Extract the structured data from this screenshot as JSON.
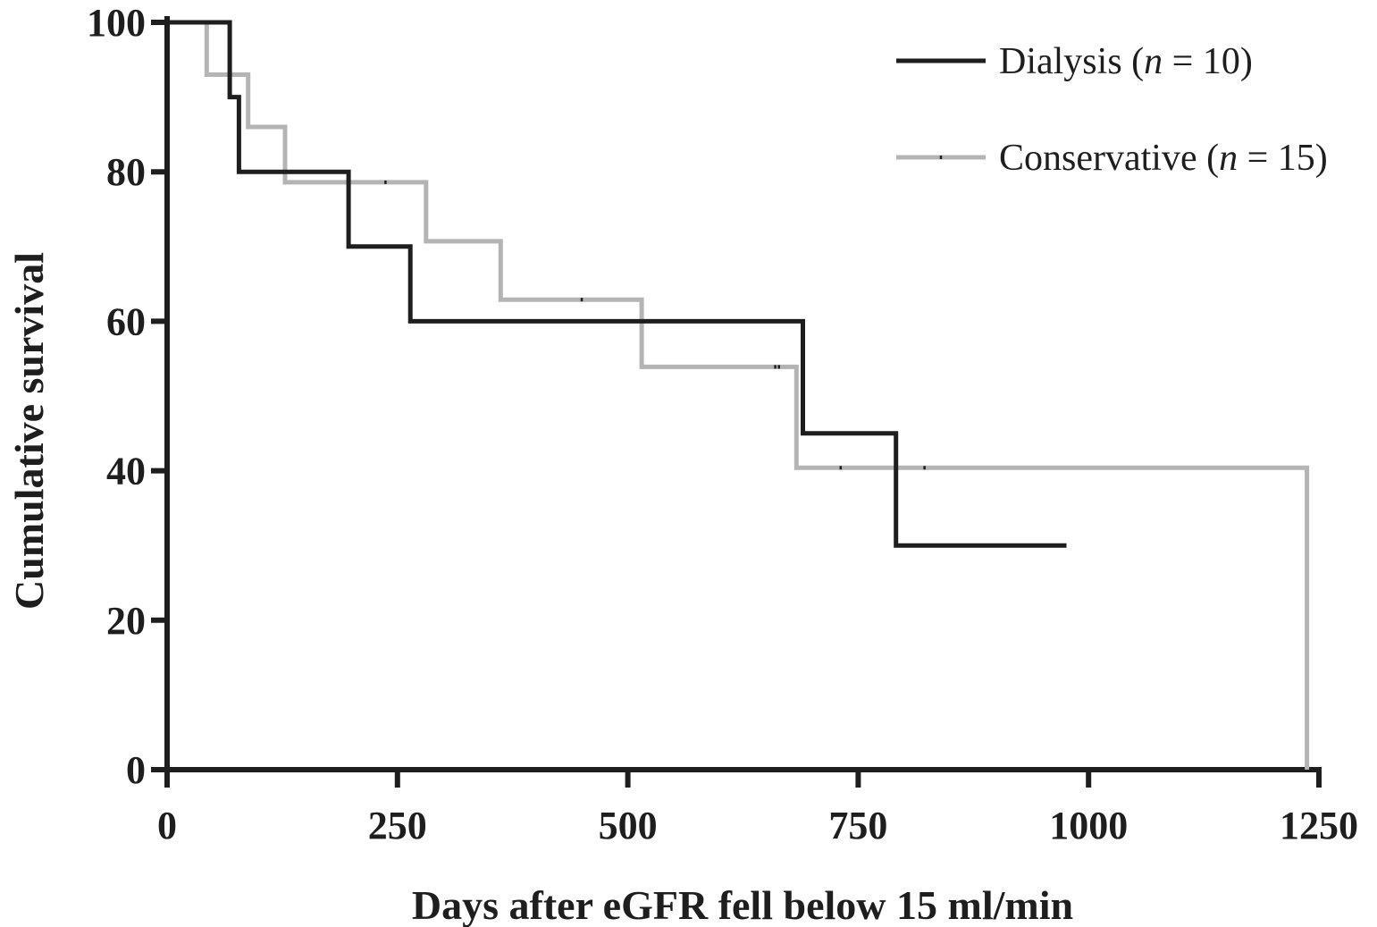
{
  "chart_data": {
    "type": "line",
    "title": "",
    "xlabel": "Days after eGFR fell below 15 ml/min",
    "ylabel": "Cumulative survival",
    "xlim": [
      0,
      1250
    ],
    "ylim": [
      0,
      100
    ],
    "x_ticks": [
      0,
      250,
      500,
      750,
      1000,
      1250
    ],
    "x_tick_labels": [
      "0",
      "250",
      "500",
      "750",
      "1000",
      "1250"
    ],
    "y_ticks": [
      0,
      20,
      40,
      60,
      80,
      100
    ],
    "y_tick_labels": [
      "0",
      "20",
      "40",
      "60",
      "80",
      "100"
    ],
    "grid": false,
    "legend_position": "top-right",
    "series": [
      {
        "name": "Dialysis (n = 10)",
        "name_prefix": "Dialysis (",
        "name_italic": "n",
        "name_suffix": " = 10)",
        "color": "#1e1e1e",
        "step": true,
        "points": [
          [
            0,
            100
          ],
          [
            68,
            100
          ],
          [
            68,
            90
          ],
          [
            78,
            90
          ],
          [
            78,
            80
          ],
          [
            197,
            80
          ],
          [
            197,
            70
          ],
          [
            264,
            70
          ],
          [
            264,
            60
          ],
          [
            690,
            60
          ],
          [
            690,
            45
          ],
          [
            791,
            45
          ],
          [
            791,
            30
          ],
          [
            976,
            30
          ]
        ],
        "censored": []
      },
      {
        "name": "Conservative (n = 15)",
        "name_prefix": "Conservative (",
        "name_italic": "n",
        "name_suffix": " = 15)",
        "color": "#b4b4b4",
        "step": true,
        "points": [
          [
            0,
            100
          ],
          [
            43,
            100
          ],
          [
            43,
            93
          ],
          [
            88,
            93
          ],
          [
            88,
            86
          ],
          [
            128,
            86
          ],
          [
            128,
            78.6
          ],
          [
            281,
            78.6
          ],
          [
            281,
            70.7
          ],
          [
            362,
            70.7
          ],
          [
            362,
            62.9
          ],
          [
            515,
            62.9
          ],
          [
            515,
            53.9
          ],
          [
            683,
            53.9
          ],
          [
            683,
            40.4
          ],
          [
            1237,
            40.4
          ],
          [
            1237,
            0
          ]
        ],
        "censored": [
          [
            237,
            78.6
          ],
          [
            450,
            62.9
          ],
          [
            660,
            53.9
          ],
          [
            664,
            53.9
          ],
          [
            731,
            40.4
          ],
          [
            822,
            40.4
          ]
        ]
      }
    ]
  }
}
